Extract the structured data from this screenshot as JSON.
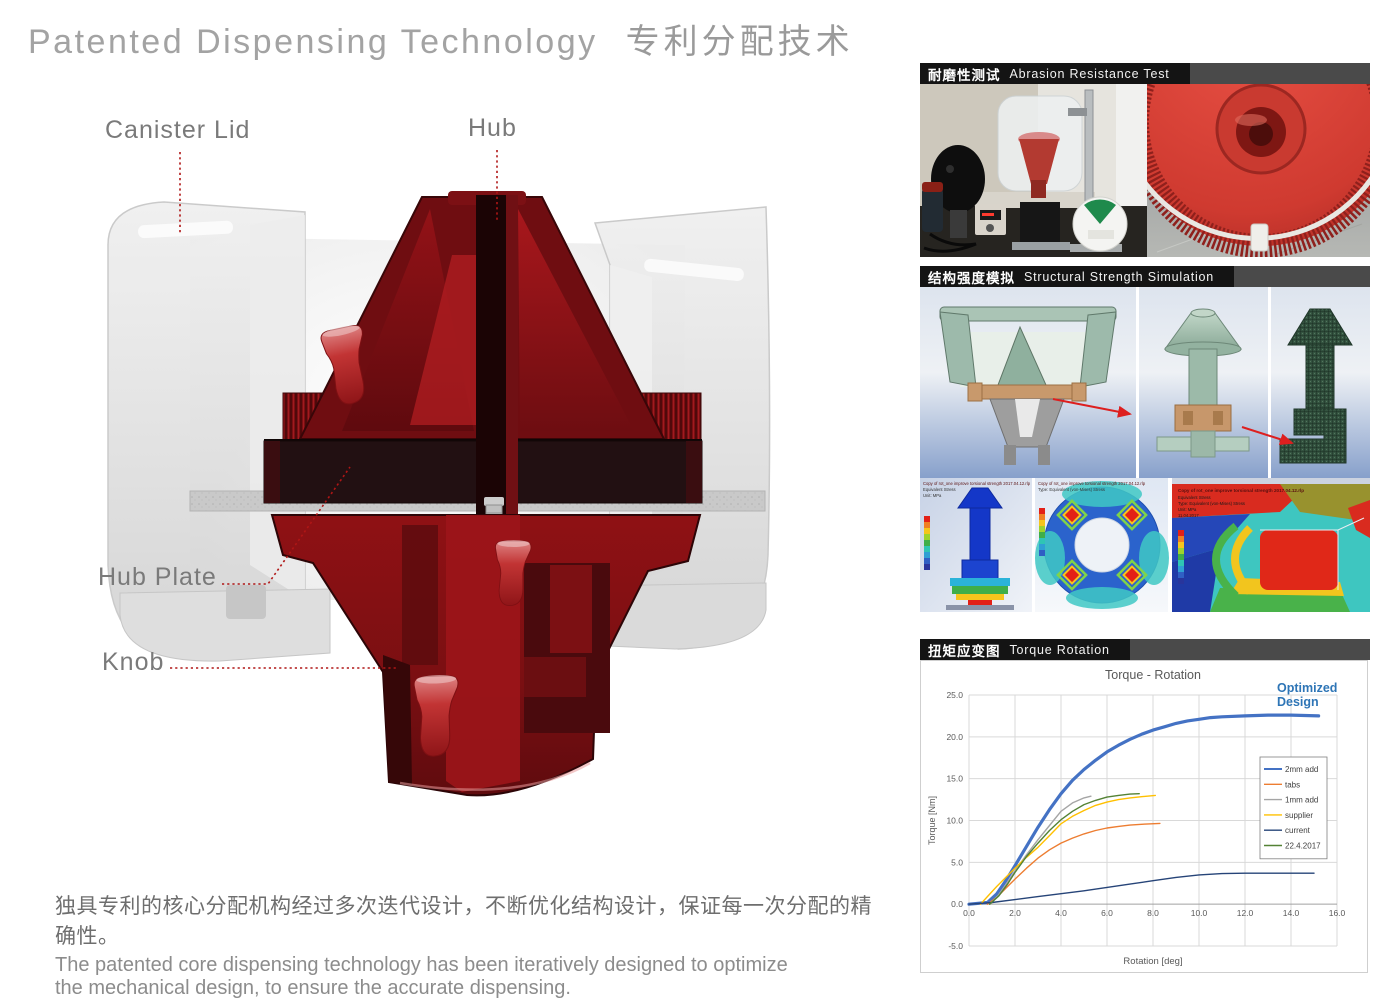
{
  "page": {
    "title_en": "Patented Dispensing Technology",
    "title_zh": "专利分配技术"
  },
  "diagram": {
    "labels": {
      "canister_lid": "Canister Lid",
      "hub": "Hub",
      "hub_plate": "Hub Plate",
      "knob": "Knob"
    }
  },
  "panels": {
    "abrasion": {
      "title_zh": "耐磨性测试",
      "title_en": "Abrasion Resistance Test"
    },
    "structural": {
      "title_zh": "结构强度模拟",
      "title_en": "Structural Strength Simulation",
      "fea_caption_title": "Copy of rot_one improve torsional strength 2017.04.12.rlp",
      "fea_caption_lines": [
        "Equivalent Stress",
        "Type: Equivalent (von-Mises) Stress",
        "Unit: MPa",
        "11.04.2017"
      ]
    },
    "torque": {
      "title_zh": "扭矩应变图",
      "title_en": "Torque Rotation"
    }
  },
  "footer": {
    "zh": "独具专利的核心分配机构经过多次迭代设计，不断优化结构设计，保证每一次分配的精确性。",
    "en_lines": [
      "The patented core dispensing technology has been iteratively designed to optimize",
      "the mechanical design, to ensure the accurate dispensing."
    ]
  },
  "colors": {
    "leader_red": "#B01616",
    "title_gray": "#A3A3A3",
    "header_bar": "#4A4A4A",
    "header_chip": "#141414",
    "annotation_blue": "#2E75B6"
  },
  "chart_data": {
    "type": "line",
    "title": "Torque - Rotation",
    "xlabel": "Rotation [deg]",
    "ylabel": "Torque [Nm]",
    "xlim": [
      0,
      16
    ],
    "ylim": [
      -5,
      25
    ],
    "xticks": [
      0,
      2,
      4,
      6,
      8,
      10,
      12,
      14,
      16
    ],
    "yticks": [
      -5,
      0,
      5,
      10,
      15,
      20,
      25
    ],
    "grid": true,
    "legend_position": "right-inside",
    "annotation": {
      "lines": [
        "Optimized",
        "Design"
      ],
      "color": "#2E75B6"
    },
    "series": [
      {
        "name": "2mm add",
        "color": "#4472C4",
        "width": 3.2,
        "points": [
          [
            0,
            0
          ],
          [
            0.8,
            0.2
          ],
          [
            1.2,
            1.2
          ],
          [
            1.6,
            2.8
          ],
          [
            2,
            4.6
          ],
          [
            2.5,
            6.9
          ],
          [
            3,
            9.2
          ],
          [
            3.5,
            11.3
          ],
          [
            4,
            13.2
          ],
          [
            4.5,
            14.8
          ],
          [
            5,
            16.1
          ],
          [
            5.5,
            17.2
          ],
          [
            6,
            18.2
          ],
          [
            6.5,
            19.0
          ],
          [
            7,
            19.7
          ],
          [
            7.5,
            20.3
          ],
          [
            8,
            20.8
          ],
          [
            8.5,
            21.2
          ],
          [
            9,
            21.6
          ],
          [
            9.5,
            21.9
          ],
          [
            10,
            22.1
          ],
          [
            10.5,
            22.3
          ],
          [
            11,
            22.4
          ],
          [
            12,
            22.5
          ],
          [
            13,
            22.6
          ],
          [
            14,
            22.6
          ],
          [
            15.2,
            22.5
          ]
        ]
      },
      {
        "name": "tabs",
        "color": "#ED7D31",
        "width": 1.4,
        "points": [
          [
            0.8,
            0
          ],
          [
            1.2,
            0.8
          ],
          [
            1.6,
            1.9
          ],
          [
            2,
            3.0
          ],
          [
            2.5,
            4.3
          ],
          [
            3,
            5.5
          ],
          [
            3.5,
            6.5
          ],
          [
            4,
            7.3
          ],
          [
            4.5,
            7.9
          ],
          [
            5,
            8.4
          ],
          [
            5.5,
            8.8
          ],
          [
            6,
            9.1
          ],
          [
            6.5,
            9.3
          ],
          [
            7,
            9.45
          ],
          [
            7.5,
            9.55
          ],
          [
            8.3,
            9.65
          ]
        ]
      },
      {
        "name": "1mm add",
        "color": "#A5A5A5",
        "width": 1.4,
        "points": [
          [
            0.9,
            0
          ],
          [
            1.2,
            0.8
          ],
          [
            1.6,
            2.3
          ],
          [
            2,
            4.0
          ],
          [
            2.5,
            5.9
          ],
          [
            3,
            7.7
          ],
          [
            3.5,
            9.4
          ],
          [
            4,
            11.1
          ],
          [
            4.5,
            12.1
          ],
          [
            5,
            12.7
          ],
          [
            5.3,
            12.9
          ]
        ]
      },
      {
        "name": "supplier",
        "color": "#FFC000",
        "width": 1.4,
        "points": [
          [
            0.5,
            0
          ],
          [
            0.8,
            0.9
          ],
          [
            1.2,
            2.1
          ],
          [
            1.6,
            3.2
          ],
          [
            2,
            4.3
          ],
          [
            2.5,
            5.6
          ],
          [
            3,
            6.8
          ],
          [
            3.5,
            8.2
          ],
          [
            4,
            9.6
          ],
          [
            4.5,
            10.5
          ],
          [
            5,
            11.2
          ],
          [
            5.5,
            11.8
          ],
          [
            6,
            12.2
          ],
          [
            6.5,
            12.5
          ],
          [
            7,
            12.7
          ],
          [
            7.5,
            12.85
          ],
          [
            8.1,
            13.0
          ]
        ]
      },
      {
        "name": "current",
        "color": "#264478",
        "width": 1.4,
        "points": [
          [
            0,
            0
          ],
          [
            1,
            0.2
          ],
          [
            2,
            0.55
          ],
          [
            3,
            0.9
          ],
          [
            4,
            1.25
          ],
          [
            5,
            1.6
          ],
          [
            6,
            2.0
          ],
          [
            7,
            2.4
          ],
          [
            8,
            2.8
          ],
          [
            9,
            3.2
          ],
          [
            10,
            3.5
          ],
          [
            11,
            3.65
          ],
          [
            12,
            3.7
          ],
          [
            13,
            3.7
          ],
          [
            14,
            3.7
          ],
          [
            15,
            3.7
          ]
        ]
      },
      {
        "name": "22.4.2017",
        "color": "#548235",
        "width": 1.4,
        "points": [
          [
            0.9,
            0
          ],
          [
            1.3,
            1.0
          ],
          [
            1.7,
            2.5
          ],
          [
            2,
            3.8
          ],
          [
            2.5,
            5.7
          ],
          [
            3,
            7.3
          ],
          [
            3.5,
            8.8
          ],
          [
            4,
            10.1
          ],
          [
            4.5,
            11.1
          ],
          [
            5,
            11.9
          ],
          [
            5.5,
            12.4
          ],
          [
            6,
            12.8
          ],
          [
            6.5,
            13.0
          ],
          [
            7,
            13.15
          ],
          [
            7.4,
            13.2
          ]
        ]
      }
    ]
  }
}
